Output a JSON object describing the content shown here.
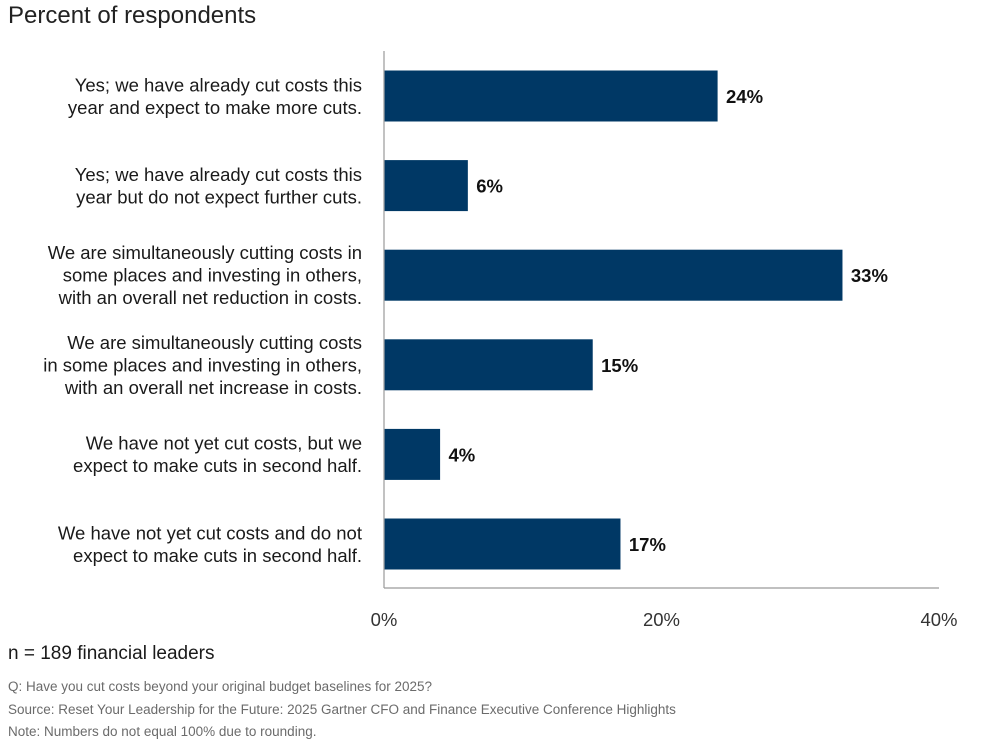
{
  "chart_data": {
    "type": "bar",
    "orientation": "horizontal",
    "title": "Percent of respondents",
    "categories": [
      [
        "Yes; we have already cut costs this",
        "year and expect to make more cuts."
      ],
      [
        "Yes; we have already cut costs this",
        "year but do not expect further cuts."
      ],
      [
        "We are simultaneously cutting costs in",
        "some places and investing in others,",
        "with an overall net reduction in costs."
      ],
      [
        "We are simultaneously cutting costs",
        "in some places and investing in others,",
        "with an overall net increase in costs."
      ],
      [
        "We have not yet cut costs, but we",
        "expect to make cuts in second half."
      ],
      [
        "We have not yet cut costs and do not",
        "expect to make cuts in second half."
      ]
    ],
    "values": [
      24,
      6,
      33,
      15,
      4,
      17
    ],
    "value_labels": [
      "24%",
      "6%",
      "33%",
      "15%",
      "4%",
      "17%"
    ],
    "xlim": [
      0,
      40
    ],
    "xticks": [
      0,
      20,
      40
    ],
    "xtick_labels": [
      "0%",
      "20%",
      "40%"
    ],
    "xlabel": "",
    "ylabel": "",
    "bar_color": "#003865",
    "grid": false
  },
  "sample_text": "n = 189 financial leaders",
  "notes": {
    "question": "Q: Have you cut costs beyond your original budget baselines for 2025?",
    "source": "Source: Reset Your Leadership for the Future: 2025 Gartner CFO and Finance Executive Conference Highlights",
    "note": "Note: Numbers do not equal 100% due to rounding."
  }
}
